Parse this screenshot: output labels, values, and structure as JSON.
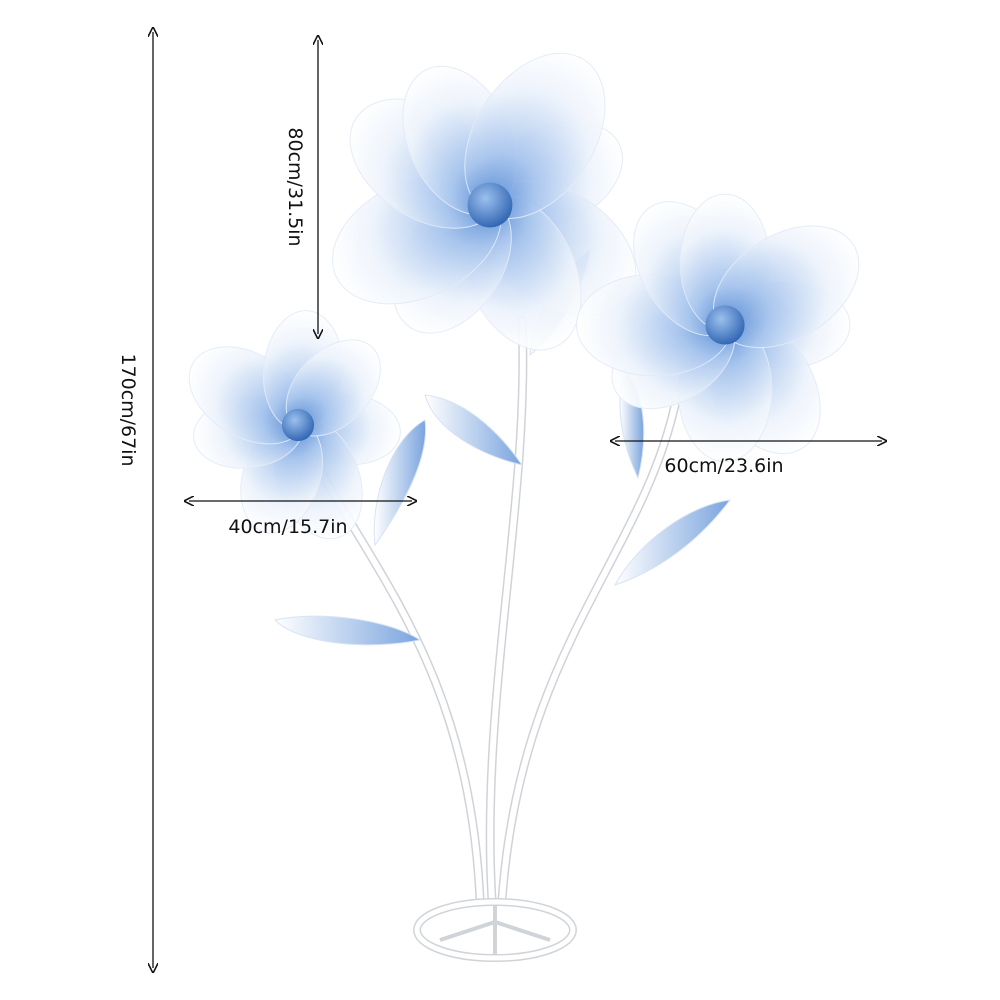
{
  "dimensions": {
    "total_height": "170cm/67in",
    "top_flower_stem": "80cm/31.5in",
    "small_flower_width": "40cm/15.7in",
    "large_flower_width": "60cm/23.6in"
  },
  "colors": {
    "petal_blue": "#5b8fd6",
    "petal_white": "#f6f9fe",
    "center_blue": "#3a74c4",
    "stem": "#ffffff",
    "annotation": "#111111"
  }
}
